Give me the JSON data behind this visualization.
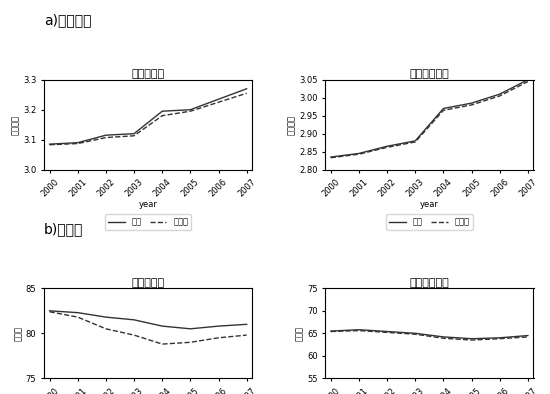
{
  "title_a": "a)工资对数",
  "title_b": "b)就业率",
  "subtitle_high_wage": "高技术工人",
  "subtitle_mid_wage": "中低技术工人",
  "subtitle_high_emp": "高技术工人",
  "subtitle_mid_emp": "中低技术工人",
  "xlabel": "year",
  "ylabel_wage": "对数工资",
  "ylabel_emp": "就业率",
  "legend_fact": "事实",
  "legend_counter": "反事实",
  "years": [
    2000,
    2001,
    2002,
    2003,
    2004,
    2005,
    2006,
    2007
  ],
  "high_wage_fact": [
    3.085,
    3.09,
    3.115,
    3.12,
    3.195,
    3.2,
    3.235,
    3.27
  ],
  "high_wage_counter": [
    3.083,
    3.087,
    3.107,
    3.113,
    3.18,
    3.195,
    3.225,
    3.255
  ],
  "mid_wage_fact": [
    2.835,
    2.845,
    2.865,
    2.88,
    2.97,
    2.985,
    3.01,
    3.05
  ],
  "mid_wage_counter": [
    2.833,
    2.843,
    2.862,
    2.877,
    2.965,
    2.98,
    3.005,
    3.045
  ],
  "high_emp_fact": [
    82.5,
    82.3,
    81.8,
    81.5,
    80.8,
    80.5,
    80.8,
    81.0
  ],
  "high_emp_counter": [
    82.4,
    81.8,
    80.5,
    79.8,
    78.8,
    79.0,
    79.5,
    79.8
  ],
  "mid_emp_fact": [
    65.5,
    65.8,
    65.4,
    65.0,
    64.2,
    63.8,
    64.0,
    64.5
  ],
  "mid_emp_counter": [
    65.4,
    65.6,
    65.2,
    64.8,
    63.9,
    63.5,
    63.8,
    64.2
  ],
  "high_wage_ylim": [
    3.0,
    3.3
  ],
  "high_wage_yticks": [
    3.0,
    3.1,
    3.2,
    3.3
  ],
  "mid_wage_ylim": [
    2.8,
    3.05
  ],
  "mid_wage_yticks": [
    2.8,
    2.85,
    2.9,
    2.95,
    3.0,
    3.05
  ],
  "high_emp_ylim": [
    75,
    85
  ],
  "high_emp_yticks": [
    75,
    80,
    85
  ],
  "mid_emp_ylim": [
    55,
    75
  ],
  "mid_emp_yticks": [
    55,
    60,
    65,
    70,
    75
  ],
  "bg_color": "#ffffff",
  "line_color": "#333333",
  "fontsize_title": 10,
  "fontsize_label": 7,
  "fontsize_tick": 6,
  "fontsize_section": 10
}
